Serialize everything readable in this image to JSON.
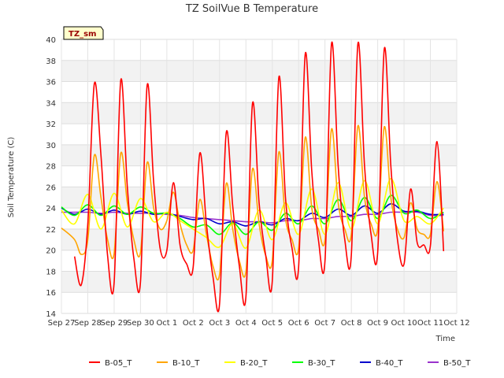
{
  "chart_data": {
    "type": "line",
    "title": "TZ SoilVue B Temperature",
    "xlabel": "Time",
    "ylabel": "Soil Temperature (C)",
    "station_tag": "TZ_sm",
    "ylim": [
      14,
      40
    ],
    "yticks": [
      14,
      16,
      18,
      20,
      22,
      24,
      26,
      28,
      30,
      32,
      34,
      36,
      38,
      40
    ],
    "xlim": [
      "2023-09-27",
      "2023-10-12"
    ],
    "xticks": [
      "2023-09-27",
      "2023-09-28",
      "2023-09-29",
      "2023-09-30",
      "2023-10-01",
      "2023-10-02",
      "2023-10-03",
      "2023-10-04",
      "2023-10-05",
      "2023-10-06",
      "2023-10-07",
      "2023-10-08",
      "2023-10-09",
      "2023-10-10",
      "2023-10-11",
      "2023-10-12"
    ],
    "xtick_labels": [
      "Sep 27",
      "Sep 28",
      "Sep 29",
      "Sep 30",
      "Oct 1",
      "Oct 2",
      "Oct 3",
      "Oct 4",
      "Oct 5",
      "Oct 6",
      "Oct 7",
      "Oct 8",
      "Oct 9",
      "Oct 10",
      "Oct 11",
      "Oct 12"
    ],
    "grid": true,
    "legend_position": "bottom",
    "series": [
      {
        "name": "B-05_T",
        "color": "#ff0000",
        "x": [
          "2023-09-27T12:00",
          "2023-09-27T18:00",
          "2023-09-28T00:00",
          "2023-09-28T06:00",
          "2023-09-28T12:00",
          "2023-09-28T18:00",
          "2023-09-29T00:00",
          "2023-09-29T06:00",
          "2023-09-29T12:00",
          "2023-09-29T18:00",
          "2023-09-30T00:00",
          "2023-09-30T06:00",
          "2023-09-30T12:00",
          "2023-09-30T18:00",
          "2023-10-01T00:00",
          "2023-10-01T06:00",
          "2023-10-01T12:00",
          "2023-10-01T18:00",
          "2023-10-02T00:00",
          "2023-10-02T06:00",
          "2023-10-02T12:00",
          "2023-10-02T18:00",
          "2023-10-03T00:00",
          "2023-10-03T06:00",
          "2023-10-03T12:00",
          "2023-10-03T18:00",
          "2023-10-04T00:00",
          "2023-10-04T06:00",
          "2023-10-04T12:00",
          "2023-10-04T18:00",
          "2023-10-05T00:00",
          "2023-10-05T06:00",
          "2023-10-05T12:00",
          "2023-10-05T18:00",
          "2023-10-06T00:00",
          "2023-10-06T06:00",
          "2023-10-06T12:00",
          "2023-10-06T18:00",
          "2023-10-07T00:00",
          "2023-10-07T06:00",
          "2023-10-07T12:00",
          "2023-10-07T18:00",
          "2023-10-08T00:00",
          "2023-10-08T06:00",
          "2023-10-08T12:00",
          "2023-10-08T18:00",
          "2023-10-09T00:00",
          "2023-10-09T06:00",
          "2023-10-09T12:00",
          "2023-10-09T18:00",
          "2023-10-10T00:00",
          "2023-10-10T06:00",
          "2023-10-10T12:00",
          "2023-10-10T18:00",
          "2023-10-11T00:00",
          "2023-10-11T06:00",
          "2023-10-11T12:00"
        ],
        "values": [
          19.4,
          16.7,
          22.5,
          35.8,
          29.0,
          19.5,
          16.9,
          36.1,
          26.0,
          19.2,
          17.0,
          35.6,
          26.5,
          20.1,
          20.0,
          26.4,
          20.5,
          18.7,
          18.4,
          29.2,
          22.5,
          17.5,
          14.9,
          31.1,
          24.2,
          18.5,
          15.6,
          33.9,
          24.5,
          19.5,
          17.0,
          36.4,
          25.0,
          20.2,
          18.4,
          38.6,
          27.5,
          21.0,
          19.0,
          39.6,
          28.0,
          21.0,
          19.5,
          39.6,
          28.0,
          21.5,
          19.8,
          39.1,
          28.0,
          21.0,
          18.7,
          25.8,
          20.7,
          20.5,
          20.4,
          30.3,
          19.9
        ]
      },
      {
        "name": "B-10_T",
        "color": "#ffa500",
        "x": [
          "2023-09-27T00:00",
          "2023-09-27T12:00",
          "2023-09-27T18:00",
          "2023-09-28T00:00",
          "2023-09-28T06:00",
          "2023-09-28T12:00",
          "2023-09-28T18:00",
          "2023-09-29T00:00",
          "2023-09-29T06:00",
          "2023-09-29T12:00",
          "2023-09-29T18:00",
          "2023-09-30T00:00",
          "2023-09-30T06:00",
          "2023-09-30T12:00",
          "2023-09-30T18:00",
          "2023-10-01T00:00",
          "2023-10-01T06:00",
          "2023-10-01T12:00",
          "2023-10-01T18:00",
          "2023-10-02T00:00",
          "2023-10-02T06:00",
          "2023-10-02T12:00",
          "2023-10-02T18:00",
          "2023-10-03T00:00",
          "2023-10-03T06:00",
          "2023-10-03T12:00",
          "2023-10-03T18:00",
          "2023-10-04T00:00",
          "2023-10-04T06:00",
          "2023-10-04T12:00",
          "2023-10-04T18:00",
          "2023-10-05T00:00",
          "2023-10-05T06:00",
          "2023-10-05T12:00",
          "2023-10-05T18:00",
          "2023-10-06T00:00",
          "2023-10-06T06:00",
          "2023-10-06T12:00",
          "2023-10-06T18:00",
          "2023-10-07T00:00",
          "2023-10-07T06:00",
          "2023-10-07T12:00",
          "2023-10-07T18:00",
          "2023-10-08T00:00",
          "2023-10-08T06:00",
          "2023-10-08T12:00",
          "2023-10-08T18:00",
          "2023-10-09T00:00",
          "2023-10-09T06:00",
          "2023-10-09T12:00",
          "2023-10-09T18:00",
          "2023-10-10T00:00",
          "2023-10-10T06:00",
          "2023-10-10T12:00",
          "2023-10-10T18:00",
          "2023-10-11T00:00",
          "2023-10-11T06:00",
          "2023-10-11T12:00"
        ],
        "values": [
          22.1,
          21.0,
          19.6,
          21.0,
          29.0,
          25.0,
          21.0,
          19.7,
          29.2,
          24.5,
          21.0,
          19.8,
          28.3,
          24.0,
          22.0,
          22.8,
          25.5,
          22.5,
          20.5,
          20.0,
          24.8,
          21.5,
          18.5,
          17.7,
          26.3,
          22.0,
          19.0,
          18.0,
          27.7,
          22.5,
          19.5,
          19.0,
          29.3,
          23.0,
          21.0,
          20.2,
          30.7,
          24.0,
          22.0,
          21.0,
          31.5,
          24.5,
          22.0,
          21.5,
          31.8,
          25.0,
          22.5,
          22.0,
          31.7,
          25.0,
          22.0,
          21.2,
          24.5,
          22.0,
          21.5,
          21.5,
          26.5,
          21.8
        ]
      },
      {
        "name": "B-20_T",
        "color": "#ffff00",
        "x": [
          "2023-09-27T00:00",
          "2023-09-27T12:00",
          "2023-09-28T00:00",
          "2023-09-28T12:00",
          "2023-09-29T00:00",
          "2023-09-29T12:00",
          "2023-09-30T00:00",
          "2023-09-30T12:00",
          "2023-10-01T00:00",
          "2023-10-01T12:00",
          "2023-10-02T00:00",
          "2023-10-02T12:00",
          "2023-10-03T00:00",
          "2023-10-03T12:00",
          "2023-10-04T00:00",
          "2023-10-04T12:00",
          "2023-10-05T00:00",
          "2023-10-05T12:00",
          "2023-10-06T00:00",
          "2023-10-06T12:00",
          "2023-10-07T00:00",
          "2023-10-07T12:00",
          "2023-10-08T00:00",
          "2023-10-08T12:00",
          "2023-10-09T00:00",
          "2023-10-09T12:00",
          "2023-10-10T00:00",
          "2023-10-10T12:00",
          "2023-10-11T00:00",
          "2023-10-11T12:00"
        ],
        "values": [
          23.8,
          22.5,
          25.3,
          22.0,
          25.4,
          22.2,
          24.9,
          22.7,
          23.6,
          22.8,
          22.0,
          21.2,
          20.3,
          22.5,
          20.2,
          23.8,
          21.0,
          24.5,
          21.5,
          25.8,
          21.5,
          26.4,
          22.0,
          26.6,
          22.5,
          26.8,
          22.8,
          23.2,
          22.5,
          24.0
        ]
      },
      {
        "name": "B-30_T",
        "color": "#00ff00",
        "x": [
          "2023-09-27T00:00",
          "2023-09-27T12:00",
          "2023-09-28T00:00",
          "2023-09-28T12:00",
          "2023-09-29T00:00",
          "2023-09-29T12:00",
          "2023-09-30T00:00",
          "2023-09-30T12:00",
          "2023-10-01T00:00",
          "2023-10-01T12:00",
          "2023-10-02T00:00",
          "2023-10-02T12:00",
          "2023-10-03T00:00",
          "2023-10-03T12:00",
          "2023-10-04T00:00",
          "2023-10-04T12:00",
          "2023-10-05T00:00",
          "2023-10-05T12:00",
          "2023-10-06T00:00",
          "2023-10-06T12:00",
          "2023-10-07T00:00",
          "2023-10-07T12:00",
          "2023-10-08T00:00",
          "2023-10-08T12:00",
          "2023-10-09T00:00",
          "2023-10-09T12:00",
          "2023-10-10T00:00",
          "2023-10-10T12:00",
          "2023-10-11T00:00",
          "2023-10-11T12:00"
        ],
        "values": [
          24.1,
          23.3,
          24.3,
          23.3,
          24.2,
          23.4,
          24.1,
          23.5,
          23.5,
          23.0,
          22.2,
          22.4,
          21.5,
          22.6,
          21.5,
          22.7,
          21.9,
          23.5,
          22.5,
          24.2,
          22.5,
          24.8,
          22.8,
          25.0,
          23.0,
          25.2,
          23.5,
          23.8,
          23.0,
          23.6
        ]
      },
      {
        "name": "B-40_T",
        "color": "#0000cc",
        "x": [
          "2023-09-27T00:00",
          "2023-09-27T12:00",
          "2023-09-28T00:00",
          "2023-09-28T12:00",
          "2023-09-29T00:00",
          "2023-09-29T12:00",
          "2023-09-30T00:00",
          "2023-09-30T12:00",
          "2023-10-01T00:00",
          "2023-10-01T12:00",
          "2023-10-02T00:00",
          "2023-10-02T12:00",
          "2023-10-03T00:00",
          "2023-10-03T12:00",
          "2023-10-04T00:00",
          "2023-10-04T12:00",
          "2023-10-05T00:00",
          "2023-10-05T12:00",
          "2023-10-06T00:00",
          "2023-10-06T12:00",
          "2023-10-07T00:00",
          "2023-10-07T12:00",
          "2023-10-08T00:00",
          "2023-10-08T12:00",
          "2023-10-09T00:00",
          "2023-10-09T12:00",
          "2023-10-10T00:00",
          "2023-10-10T12:00",
          "2023-10-11T00:00",
          "2023-10-11T12:00"
        ],
        "values": [
          24.0,
          23.4,
          23.9,
          23.4,
          23.8,
          23.4,
          23.7,
          23.4,
          23.5,
          23.2,
          22.9,
          23.0,
          22.5,
          22.7,
          22.3,
          22.7,
          22.4,
          23.0,
          22.8,
          23.5,
          23.1,
          23.9,
          23.3,
          24.2,
          23.5,
          24.4,
          23.7,
          23.7,
          23.4,
          23.4
        ]
      },
      {
        "name": "B-50_T",
        "color": "#9932cc",
        "x": [
          "2023-09-27T00:00",
          "2023-09-27T12:00",
          "2023-09-28T00:00",
          "2023-09-28T12:00",
          "2023-09-29T00:00",
          "2023-09-29T12:00",
          "2023-09-30T00:00",
          "2023-09-30T12:00",
          "2023-10-01T00:00",
          "2023-10-01T12:00",
          "2023-10-02T00:00",
          "2023-10-02T12:00",
          "2023-10-03T00:00",
          "2023-10-03T12:00",
          "2023-10-04T00:00",
          "2023-10-04T12:00",
          "2023-10-05T00:00",
          "2023-10-05T12:00",
          "2023-10-06T00:00",
          "2023-10-06T12:00",
          "2023-10-07T00:00",
          "2023-10-07T12:00",
          "2023-10-08T00:00",
          "2023-10-08T12:00",
          "2023-10-09T00:00",
          "2023-10-09T12:00",
          "2023-10-10T00:00",
          "2023-10-10T12:00",
          "2023-10-11T00:00",
          "2023-10-11T12:00"
        ],
        "values": [
          23.6,
          23.6,
          23.6,
          23.5,
          23.6,
          23.5,
          23.5,
          23.5,
          23.4,
          23.3,
          23.1,
          23.0,
          22.9,
          22.8,
          22.7,
          22.7,
          22.6,
          22.8,
          22.8,
          23.0,
          23.0,
          23.2,
          23.2,
          23.4,
          23.4,
          23.6,
          23.6,
          23.6,
          23.3,
          23.3
        ]
      }
    ]
  }
}
